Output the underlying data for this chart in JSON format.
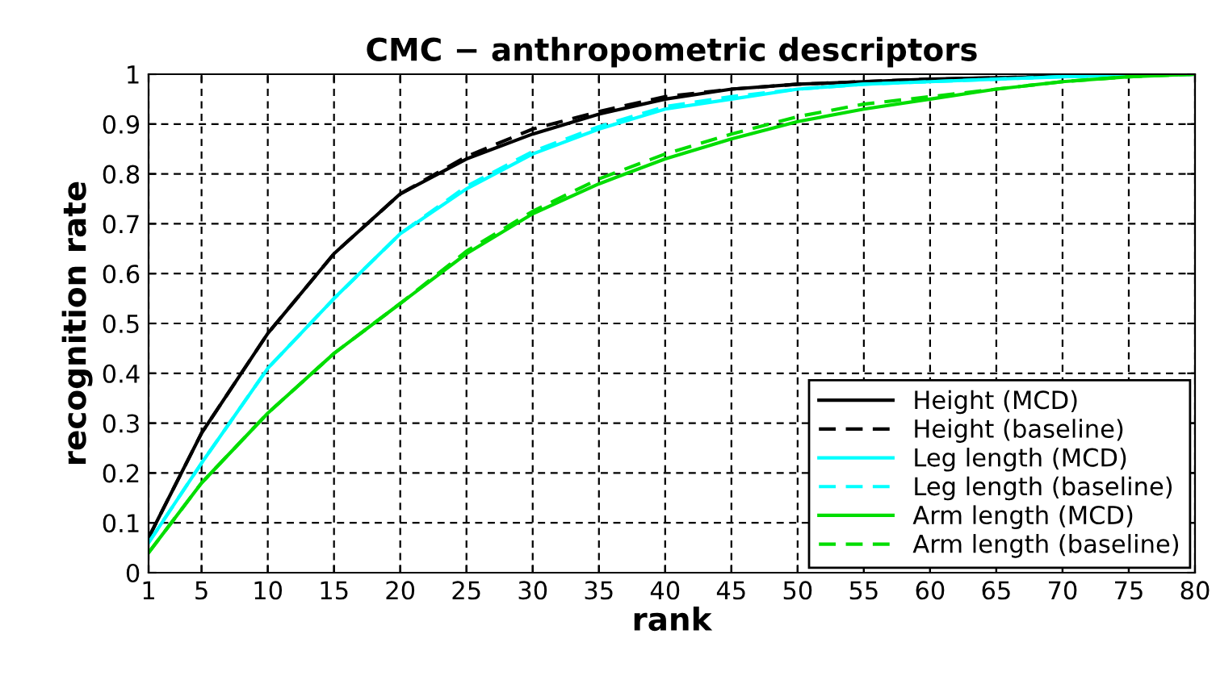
{
  "chart_data": {
    "type": "line",
    "title": "CMC − anthropometric descriptors",
    "xlabel": "rank",
    "ylabel": "recognition rate",
    "x": [
      1,
      5,
      10,
      15,
      20,
      25,
      30,
      35,
      40,
      45,
      50,
      55,
      60,
      65,
      70,
      75,
      80
    ],
    "series": [
      {
        "name": "Height (MCD)",
        "color": "#000000",
        "line_style": "solid",
        "values": [
          0.07,
          0.28,
          0.48,
          0.64,
          0.76,
          0.83,
          0.88,
          0.92,
          0.95,
          0.97,
          0.98,
          0.985,
          0.99,
          0.993,
          0.996,
          0.998,
          1.0
        ]
      },
      {
        "name": "Height (baseline)",
        "color": "#000000",
        "line_style": "dashed",
        "values": [
          0.07,
          0.28,
          0.48,
          0.64,
          0.76,
          0.835,
          0.89,
          0.925,
          0.955,
          0.97,
          0.98,
          0.985,
          0.99,
          0.993,
          0.996,
          0.998,
          1.0
        ]
      },
      {
        "name": "Leg length (MCD)",
        "color": "#00ffff",
        "line_style": "solid",
        "values": [
          0.06,
          0.22,
          0.41,
          0.55,
          0.68,
          0.77,
          0.84,
          0.89,
          0.93,
          0.95,
          0.97,
          0.98,
          0.985,
          0.99,
          0.995,
          0.998,
          1.0
        ]
      },
      {
        "name": "Leg length (baseline)",
        "color": "#00ffff",
        "line_style": "dashed",
        "values": [
          0.06,
          0.22,
          0.41,
          0.55,
          0.68,
          0.775,
          0.845,
          0.895,
          0.935,
          0.955,
          0.97,
          0.98,
          0.985,
          0.99,
          0.995,
          0.998,
          1.0
        ]
      },
      {
        "name": "Arm length (MCD)",
        "color": "#00dd00",
        "line_style": "solid",
        "values": [
          0.04,
          0.18,
          0.32,
          0.44,
          0.54,
          0.64,
          0.72,
          0.78,
          0.83,
          0.87,
          0.905,
          0.93,
          0.95,
          0.97,
          0.985,
          0.995,
          1.0
        ]
      },
      {
        "name": "Arm length (baseline)",
        "color": "#00dd00",
        "line_style": "dashed",
        "values": [
          0.04,
          0.18,
          0.32,
          0.44,
          0.54,
          0.645,
          0.725,
          0.79,
          0.84,
          0.88,
          0.915,
          0.94,
          0.955,
          0.97,
          0.985,
          0.995,
          1.0
        ]
      }
    ],
    "xlim": [
      1,
      80
    ],
    "ylim": [
      0,
      1
    ],
    "xticks": [
      1,
      5,
      10,
      15,
      20,
      25,
      30,
      35,
      40,
      45,
      50,
      55,
      60,
      65,
      70,
      75,
      80
    ],
    "yticks": [
      0,
      0.1,
      0.2,
      0.3,
      0.4,
      0.5,
      0.6,
      0.7,
      0.8,
      0.9,
      1
    ],
    "grid": true,
    "legend": "bottom right",
    "marker": "none"
  }
}
